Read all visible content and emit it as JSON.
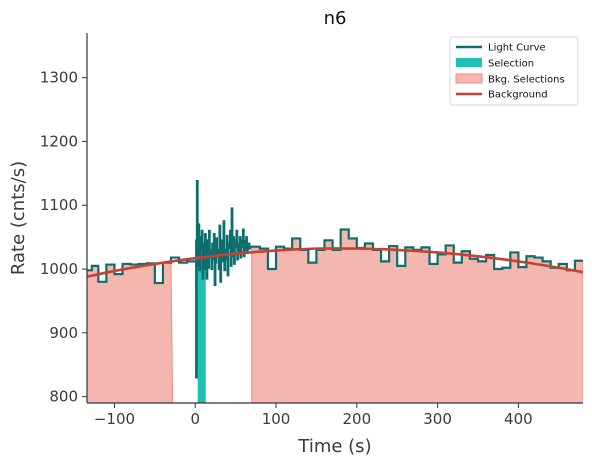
{
  "chart_data": {
    "type": "line",
    "title": "n6",
    "xlabel": "Time (s)",
    "ylabel": "Rate (cnts/s)",
    "xlim": [
      -134,
      480
    ],
    "ylim": [
      790,
      1370
    ],
    "xticks": [
      -100,
      0,
      100,
      200,
      300,
      400
    ],
    "yticks": [
      800,
      900,
      1000,
      1100,
      1200,
      1300
    ],
    "grid": false,
    "legend_position": "top-right",
    "legend": [
      {
        "label": "Light Curve",
        "kind": "line"
      },
      {
        "label": "Selection",
        "kind": "patch"
      },
      {
        "label": "Bkg. Selections",
        "kind": "patch"
      },
      {
        "label": "Background",
        "kind": "line"
      }
    ],
    "colors": {
      "light_curve": "#0e6e6e",
      "selection": "#20c0b4",
      "bkg_fill": "#f4b7b0",
      "bkg_edge": "#f08a80",
      "background": "#c84030"
    },
    "selection_interval": [
      3,
      13
    ],
    "background_intervals": [
      [
        -134,
        -28
      ],
      [
        70,
        480
      ]
    ],
    "background_fit": {
      "x": [
        -134,
        -100,
        -50,
        0,
        50,
        100,
        150,
        200,
        250,
        300,
        350,
        400,
        450,
        480
      ],
      "y": [
        988,
        997,
        1008,
        1017,
        1024,
        1029,
        1032,
        1032,
        1030,
        1026,
        1020,
        1012,
        1002,
        995
      ]
    },
    "light_curve_coarse": {
      "bins": [
        [
          -134,
          -128,
          998
        ],
        [
          -128,
          -120,
          1005
        ],
        [
          -120,
          -110,
          980
        ],
        [
          -110,
          -100,
          1007
        ],
        [
          -100,
          -90,
          992
        ],
        [
          -90,
          -80,
          1008
        ],
        [
          -80,
          -70,
          1007
        ],
        [
          -70,
          -60,
          1008
        ],
        [
          -60,
          -50,
          1009
        ],
        [
          -50,
          -40,
          978
        ],
        [
          -40,
          -30,
          1010
        ],
        [
          -30,
          -20,
          1018
        ],
        [
          -20,
          -10,
          1010
        ],
        [
          -10,
          0,
          1012
        ],
        [
          68,
          80,
          1035
        ],
        [
          80,
          90,
          1032
        ],
        [
          90,
          100,
          1000
        ],
        [
          100,
          110,
          1035
        ],
        [
          110,
          120,
          1032
        ],
        [
          120,
          130,
          1048
        ],
        [
          130,
          140,
          1030
        ],
        [
          140,
          150,
          1010
        ],
        [
          150,
          160,
          1030
        ],
        [
          160,
          170,
          1045
        ],
        [
          170,
          180,
          1030
        ],
        [
          180,
          190,
          1062
        ],
        [
          190,
          200,
          1048
        ],
        [
          200,
          210,
          1033
        ],
        [
          210,
          220,
          1040
        ],
        [
          220,
          230,
          1030
        ],
        [
          230,
          240,
          1012
        ],
        [
          240,
          250,
          1036
        ],
        [
          250,
          260,
          1005
        ],
        [
          260,
          270,
          1034
        ],
        [
          270,
          280,
          1030
        ],
        [
          280,
          290,
          1034
        ],
        [
          290,
          300,
          1008
        ],
        [
          300,
          310,
          1023
        ],
        [
          310,
          320,
          1037
        ],
        [
          320,
          330,
          1010
        ],
        [
          330,
          340,
          1028
        ],
        [
          340,
          350,
          1016
        ],
        [
          350,
          360,
          1012
        ],
        [
          360,
          370,
          1022
        ],
        [
          370,
          380,
          1000
        ],
        [
          380,
          390,
          1002
        ],
        [
          390,
          400,
          1026
        ],
        [
          400,
          410,
          1003
        ],
        [
          410,
          420,
          1020
        ],
        [
          420,
          430,
          1018
        ],
        [
          430,
          440,
          1012
        ],
        [
          440,
          450,
          1002
        ],
        [
          450,
          460,
          1008
        ],
        [
          460,
          470,
          998
        ],
        [
          470,
          480,
          1013
        ]
      ]
    },
    "light_curve_fine": {
      "x": [
        0,
        1,
        2,
        3,
        4,
        5,
        6,
        7,
        8,
        9,
        10,
        11,
        12,
        13,
        14,
        15,
        16,
        17,
        18,
        19,
        20,
        21,
        22,
        23,
        24,
        25,
        26,
        27,
        28,
        29,
        30,
        31,
        32,
        33,
        34,
        35,
        36,
        37,
        38,
        39,
        40,
        41,
        42,
        43,
        44,
        45,
        46,
        47,
        48,
        49,
        50,
        51,
        52,
        53,
        54,
        55,
        56,
        57,
        58,
        59,
        60,
        61,
        62,
        63,
        64,
        65,
        66,
        67,
        68
      ],
      "y": [
        1045,
        830,
        1138,
        1005,
        1070,
        998,
        1050,
        1030,
        1060,
        985,
        1040,
        1000,
        1055,
        1020,
        985,
        1045,
        1002,
        1060,
        1018,
        1030,
        1000,
        1040,
        1015,
        1055,
        975,
        1010,
        1048,
        1020,
        1030,
        1000,
        1068,
        980,
        1045,
        1012,
        1026,
        1075,
        998,
        1030,
        1015,
        1052,
        990,
        1033,
        1040,
        1060,
        1005,
        1095,
        1020,
        1050,
        1008,
        1035,
        1045,
        1060,
        1015,
        1040,
        1025,
        1050,
        1018,
        1045,
        1035,
        1062,
        1020,
        1044,
        1030,
        1050,
        1028,
        1035,
        1040,
        1032,
        1035
      ]
    }
  }
}
